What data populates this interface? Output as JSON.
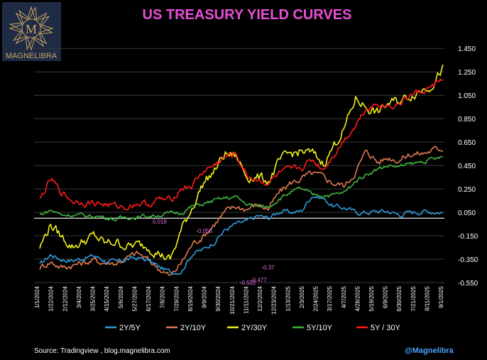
{
  "brand": {
    "name": "MAGNELIBRA",
    "monogram": "M"
  },
  "source_text": "Source:  Tradingview , blog.magnelibra.com",
  "handle": "@Magnelibra",
  "colors": {
    "title": "#e84fd6",
    "grid": "#3a3a3a",
    "zero_line": "#ffffff",
    "axis_text": "#ffffff",
    "annotation": "#e06fe0",
    "logo_bg": "#1f2a44",
    "logo_gold": "#c9a560",
    "handle": "#4aa3ff"
  },
  "chart_data": {
    "type": "line",
    "title": "US TREASURY YIELD CURVES",
    "xlabel": "",
    "ylabel": "",
    "ylim": [
      -0.55,
      1.5
    ],
    "y_ticks": [
      -0.55,
      -0.35,
      -0.15,
      0.05,
      0.25,
      0.45,
      0.65,
      0.85,
      1.05,
      1.25,
      1.45
    ],
    "y_tick_labels": [
      "-0.550",
      "-0.350",
      "-0.150",
      "0.050",
      "0.250",
      "0.450",
      "0.650",
      "0.850",
      "1.050",
      "1.250",
      "1.450"
    ],
    "x_tick_labels": [
      "1/1/2024",
      "1/22/2024",
      "2/12/2024",
      "3/4/2024",
      "3/25/2024",
      "4/15/2024",
      "5/6/2024",
      "5/27/2024",
      "6/17/2024",
      "7/8/2024",
      "7/29/2024",
      "8/19/2024",
      "9/9/2024",
      "9/30/2024",
      "10/21/2024",
      "11/11/2024",
      "12/2/2024",
      "12/23/2024",
      "1/13/2025",
      "2/3/2025",
      "2/24/2025",
      "3/17/2025",
      "4/7/2025",
      "4/28/2025",
      "5/19/2025",
      "6/9/2025",
      "6/30/2025",
      "7/21/2025",
      "8/11/2025",
      "9/1/2025"
    ],
    "grid": true,
    "zero_line": 0.0,
    "legend_position": "bottom",
    "series": [
      {
        "name": "2Y/5Y",
        "color": "#2e9bdc",
        "values": [
          -0.4,
          -0.31,
          -0.35,
          -0.36,
          -0.34,
          -0.32,
          -0.36,
          -0.38,
          -0.35,
          -0.34,
          -0.36,
          -0.42,
          -0.46,
          -0.45,
          -0.3,
          -0.27,
          -0.2,
          -0.1,
          -0.05,
          -0.03,
          0.02,
          0.0,
          0.06,
          0.05,
          0.06,
          0.2,
          0.17,
          0.1,
          0.09,
          0.05,
          0.05,
          0.06,
          0.06,
          0.03,
          0.05,
          0.06,
          0.06,
          0.05
        ]
      },
      {
        "name": "2Y/10Y",
        "color": "#e07b4f",
        "values": [
          -0.42,
          -0.37,
          -0.42,
          -0.4,
          -0.38,
          -0.36,
          -0.38,
          -0.38,
          -0.34,
          -0.3,
          -0.36,
          -0.43,
          -0.5,
          -0.38,
          -0.22,
          -0.15,
          -0.05,
          0.05,
          0.1,
          0.08,
          0.12,
          0.08,
          0.22,
          0.3,
          0.34,
          0.38,
          0.35,
          0.3,
          0.28,
          0.4,
          0.58,
          0.48,
          0.52,
          0.5,
          0.55,
          0.55,
          0.58,
          0.6
        ]
      },
      {
        "name": "2Y/30Y",
        "color": "#f2f21b",
        "values": [
          -0.25,
          -0.05,
          -0.16,
          -0.24,
          -0.2,
          -0.15,
          -0.22,
          -0.2,
          -0.24,
          -0.23,
          -0.24,
          -0.3,
          -0.36,
          -0.1,
          0.1,
          0.3,
          0.4,
          0.55,
          0.53,
          0.36,
          0.35,
          0.32,
          0.48,
          0.55,
          0.57,
          0.55,
          0.47,
          0.62,
          0.78,
          1.02,
          0.95,
          0.9,
          0.98,
          1.0,
          1.05,
          1.1,
          1.15,
          1.28
        ]
      },
      {
        "name": "5Y/10Y",
        "color": "#3fb63f",
        "values": [
          0.03,
          0.07,
          0.03,
          0.03,
          0.02,
          0.02,
          0.01,
          -0.01,
          0.01,
          0.01,
          0.02,
          0.03,
          0.04,
          0.05,
          0.1,
          0.12,
          0.15,
          0.17,
          0.18,
          0.12,
          0.1,
          0.1,
          0.17,
          0.22,
          0.25,
          0.2,
          0.2,
          0.2,
          0.22,
          0.32,
          0.38,
          0.42,
          0.45,
          0.44,
          0.46,
          0.48,
          0.5,
          0.52
        ]
      },
      {
        "name": "5Y / 30Y",
        "color": "#ff1a1a",
        "values": [
          0.15,
          0.33,
          0.22,
          0.15,
          0.14,
          0.13,
          0.12,
          0.1,
          0.1,
          0.13,
          0.12,
          0.16,
          0.15,
          0.26,
          0.28,
          0.4,
          0.45,
          0.52,
          0.55,
          0.36,
          0.33,
          0.3,
          0.38,
          0.4,
          0.43,
          0.5,
          0.42,
          0.55,
          0.68,
          0.8,
          0.95,
          0.98,
          0.96,
          0.98,
          1.05,
          1.08,
          1.12,
          1.2
        ]
      }
    ],
    "annotations": [
      {
        "text": "0.019",
        "x_index": 11,
        "y": 0.019
      },
      {
        "text": "-0.058",
        "x_index": 15,
        "y": -0.058
      },
      {
        "text": "-0.37",
        "x_index": 21,
        "y": -0.37
      },
      {
        "text": "-0.477",
        "x_index": 20,
        "y": -0.477
      },
      {
        "text": "-0.502",
        "x_index": 19,
        "y": -0.502
      }
    ]
  }
}
